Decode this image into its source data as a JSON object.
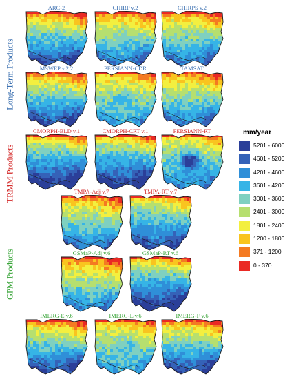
{
  "colors": {
    "long_term_label": "#3a6fb0",
    "trmm_label": "#d42a2a",
    "gpm_label": "#3aa53a",
    "panel_title_long_term": "#3a6fb0",
    "panel_title_trmm": "#d42a2a",
    "panel_title_gpm": "#3aa53a"
  },
  "groups": [
    {
      "id": "long-term",
      "label": "Long-Term Products"
    },
    {
      "id": "trmm",
      "label": "TRMM Products"
    },
    {
      "id": "gpm",
      "label": "GPM Products"
    }
  ],
  "panels": [
    {
      "title": "ARC-2",
      "group": "long-term",
      "pattern": "a"
    },
    {
      "title": "CHIRP v.2",
      "group": "long-term",
      "pattern": "b"
    },
    {
      "title": "CHIRPS v.2",
      "group": "long-term",
      "pattern": "b"
    },
    {
      "title": "MSWEP v.2.2",
      "group": "long-term",
      "pattern": "a"
    },
    {
      "title": "PERSIANN-CDR",
      "group": "long-term",
      "pattern": "c"
    },
    {
      "title": "TAMSAT",
      "group": "long-term",
      "pattern": "b"
    },
    {
      "title": "CMORPH-BLD v.1",
      "group": "trmm",
      "pattern": "d"
    },
    {
      "title": "CMORPH-CRT v.1",
      "group": "trmm",
      "pattern": "d"
    },
    {
      "title": "PERSIANN-RT",
      "group": "trmm",
      "pattern": "e"
    },
    {
      "title": "TMPA-Adj v.7",
      "group": "trmm",
      "pattern": "b"
    },
    {
      "title": "TMPA-RT v.7",
      "group": "trmm",
      "pattern": "f"
    },
    {
      "title": "GSMaP-Adj v.6",
      "group": "gpm",
      "pattern": "g"
    },
    {
      "title": "GSMaP-RT v.6",
      "group": "gpm",
      "pattern": "d"
    },
    {
      "title": "IMERG-E v.6",
      "group": "gpm",
      "pattern": "a"
    },
    {
      "title": "IMERG-L v.6",
      "group": "gpm",
      "pattern": "c"
    },
    {
      "title": "IMERG-F v.6",
      "group": "gpm",
      "pattern": "a"
    }
  ],
  "legend": {
    "title": "mm/year",
    "classes": [
      {
        "label": "5201 - 6000",
        "color": "#2b3f99"
      },
      {
        "label": "4601 - 5200",
        "color": "#3562b8"
      },
      {
        "label": "4201 - 4600",
        "color": "#2f8fd8"
      },
      {
        "label": "3601 - 4200",
        "color": "#36b4e6"
      },
      {
        "label": "3001 - 3600",
        "color": "#7fd0c0"
      },
      {
        "label": "2401 - 3000",
        "color": "#b6df6f"
      },
      {
        "label": "1801 - 2400",
        "color": "#f3ef3f"
      },
      {
        "label": "1200 - 1800",
        "color": "#f9c41f"
      },
      {
        "label": "371 - 1200",
        "color": "#f47a22"
      },
      {
        "label": "0 - 370",
        "color": "#ea2a24"
      }
    ]
  }
}
